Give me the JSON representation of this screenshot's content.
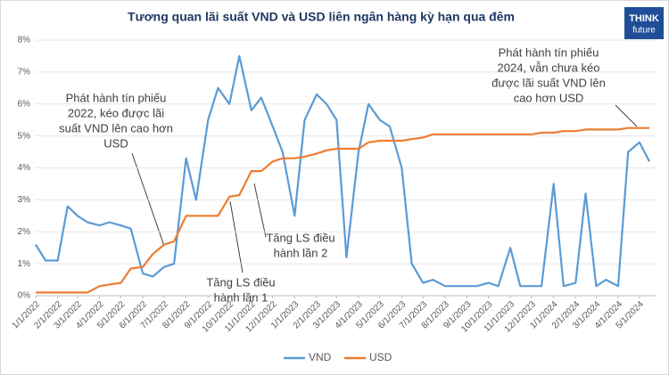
{
  "chart_data": {
    "type": "line",
    "title": "Tương quan lãi suất VND và USD liên ngân hàng kỳ hạn qua đêm",
    "brand": [
      "THINK",
      "future"
    ],
    "x": [
      "1/1/2022",
      "1/15/2022",
      "2/1/2022",
      "2/15/2022",
      "3/1/2022",
      "3/15/2022",
      "4/1/2022",
      "4/15/2022",
      "5/1/2022",
      "5/15/2022",
      "6/1/2022",
      "6/15/2022",
      "7/1/2022",
      "7/15/2022",
      "8/1/2022",
      "8/15/2022",
      "9/1/2022",
      "9/15/2022",
      "10/1/2022",
      "10/15/2022",
      "11/1/2022",
      "11/15/2022",
      "12/1/2022",
      "12/15/2022",
      "1/1/2023",
      "1/15/2023",
      "2/1/2023",
      "2/15/2023",
      "3/1/2023",
      "3/15/2023",
      "4/1/2023",
      "4/15/2023",
      "5/1/2023",
      "5/15/2023",
      "6/1/2023",
      "6/15/2023",
      "7/1/2023",
      "7/15/2023",
      "8/1/2023",
      "8/15/2023",
      "9/1/2023",
      "9/15/2023",
      "10/1/2023",
      "10/15/2023",
      "11/1/2023",
      "11/15/2023",
      "12/1/2023",
      "12/15/2023",
      "1/1/2024",
      "1/15/2024",
      "2/1/2024",
      "2/15/2024",
      "3/1/2024",
      "3/15/2024",
      "4/1/2024",
      "4/15/2024",
      "5/1/2024",
      "5/15/2024"
    ],
    "series": [
      {
        "name": "VND",
        "color": "#5b9bd5",
        "values": [
          1.6,
          1.1,
          1.1,
          2.8,
          2.5,
          2.3,
          2.2,
          2.3,
          2.2,
          2.1,
          0.7,
          0.6,
          0.9,
          1.0,
          4.3,
          3.0,
          5.5,
          6.5,
          6.0,
          7.5,
          5.8,
          6.2,
          5.3,
          4.5,
          2.5,
          5.5,
          6.3,
          6.0,
          5.5,
          1.2,
          4.5,
          6.0,
          5.5,
          5.3,
          4.0,
          1.0,
          0.4,
          0.5,
          0.3,
          0.3,
          0.3,
          0.3,
          0.4,
          0.3,
          1.5,
          0.3,
          0.3,
          0.3,
          3.5,
          0.3,
          0.4,
          3.2,
          0.3,
          0.5,
          0.3,
          4.5,
          4.8,
          4.2
        ]
      },
      {
        "name": "USD",
        "color": "#ed7d31",
        "values": [
          0.1,
          0.1,
          0.1,
          0.1,
          0.1,
          0.1,
          0.3,
          0.35,
          0.4,
          0.85,
          0.9,
          1.3,
          1.6,
          1.7,
          2.5,
          2.5,
          2.5,
          2.5,
          3.1,
          3.15,
          3.9,
          3.9,
          4.2,
          4.3,
          4.3,
          4.35,
          4.45,
          4.55,
          4.6,
          4.6,
          4.6,
          4.8,
          4.85,
          4.85,
          4.85,
          4.9,
          4.95,
          5.05,
          5.05,
          5.05,
          5.05,
          5.05,
          5.05,
          5.05,
          5.05,
          5.05,
          5.05,
          5.1,
          5.1,
          5.15,
          5.15,
          5.2,
          5.2,
          5.2,
          5.2,
          5.25,
          5.25,
          5.25
        ]
      }
    ],
    "xlim": [
      "1/1/2022",
      "5/25/2024"
    ],
    "xticks": [
      "1/1/2022",
      "2/1/2022",
      "3/1/2022",
      "4/1/2022",
      "5/1/2022",
      "6/1/2022",
      "7/1/2022",
      "8/1/2022",
      "9/1/2022",
      "10/1/2022",
      "11/1/2022",
      "12/1/2022",
      "1/1/2023",
      "2/1/2023",
      "3/1/2023",
      "4/1/2023",
      "5/1/2023",
      "6/1/2023",
      "7/1/2023",
      "8/1/2023",
      "9/1/2023",
      "10/1/2023",
      "11/1/2023",
      "12/1/2023",
      "1/1/2024",
      "2/1/2024",
      "3/1/2024",
      "4/1/2024",
      "5/1/2024"
    ],
    "ylim": [
      0,
      8
    ],
    "yticks": [
      {
        "value": 0,
        "label": "0%"
      },
      {
        "value": 1,
        "label": "1%"
      },
      {
        "value": 2,
        "label": "2%"
      },
      {
        "value": 3,
        "label": "3%"
      },
      {
        "value": 4,
        "label": "4%"
      },
      {
        "value": 5,
        "label": "5%"
      },
      {
        "value": 6,
        "label": "6%"
      },
      {
        "value": 7,
        "label": "7%"
      },
      {
        "value": 8,
        "label": "8%"
      }
    ],
    "grid": true,
    "legend": "bottom",
    "annotations": [
      {
        "lines": [
          "Phát hành tín phiếu",
          "2022, kéo được lãi",
          "suất VND lên cao hơn",
          "USD"
        ]
      },
      {
        "lines": [
          "Tăng LS điều",
          "hành lần 1"
        ]
      },
      {
        "lines": [
          "Tăng LS điều",
          "hành lần 2"
        ]
      },
      {
        "lines": [
          "Phát hành tín phiếu",
          "2024, vẫn chưa kéo",
          "được lãi suất VND lên",
          "cao hơn USD"
        ]
      }
    ]
  }
}
